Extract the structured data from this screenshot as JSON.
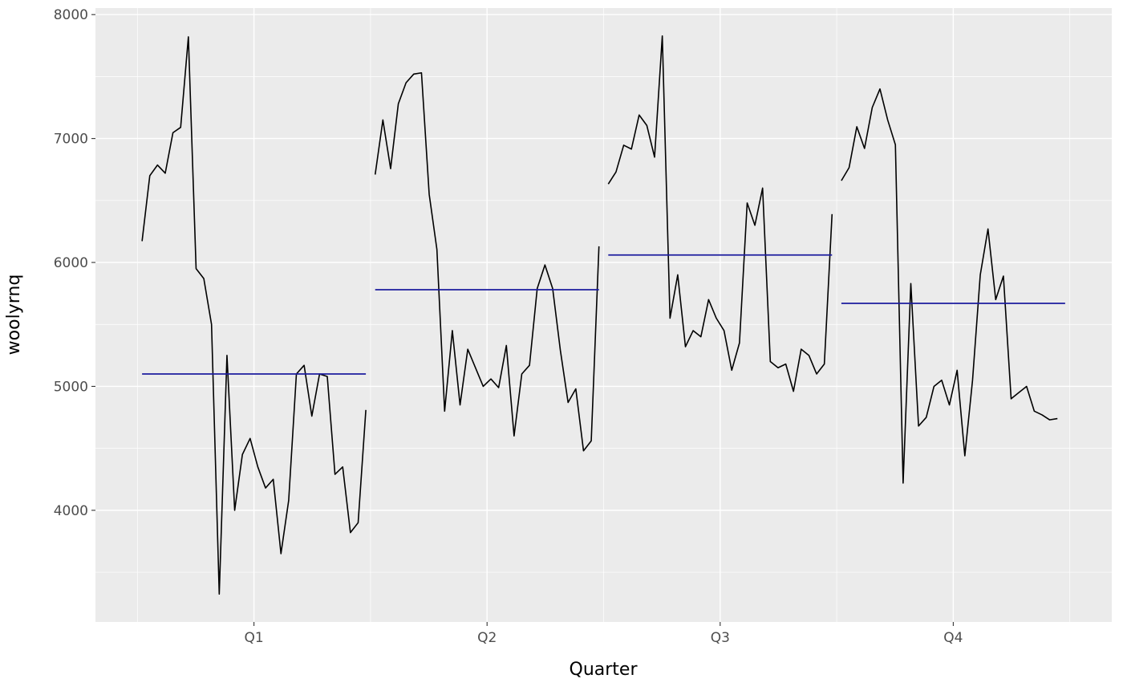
{
  "chart_data": {
    "type": "line",
    "subtype": "seasonal-subseries",
    "title": "",
    "xlabel": "Quarter",
    "ylabel": "woolyrnq",
    "categories": [
      "Q1",
      "Q2",
      "Q3",
      "Q4"
    ],
    "ylim": [
      3099,
      8053
    ],
    "yticks": [
      4000,
      5000,
      6000,
      7000,
      8000
    ],
    "yticks_minor": [
      3500,
      4500,
      5500,
      6500,
      7500
    ],
    "grid": true,
    "legend": "none",
    "panel_bg": "#EBEBEB",
    "grid_color": "#FFFFFF",
    "series_color": "#000000",
    "mean_line_color": "#1C1C9E",
    "tick_label_color": "#4D4D4D",
    "tick_mark_color": "#333333",
    "series": [
      {
        "name": "Q1",
        "mean": 5100,
        "values": [
          6172,
          6700,
          6786,
          6720,
          7047,
          7090,
          7820,
          5950,
          5870,
          5500,
          3324,
          5250,
          4000,
          4450,
          4580,
          4350,
          4180,
          4250,
          3650,
          4080,
          5100,
          5170,
          4760,
          5100,
          5080,
          4290,
          4350,
          3820,
          3900,
          4810
        ]
      },
      {
        "name": "Q2",
        "mean": 5780,
        "values": [
          6709,
          7150,
          6757,
          7280,
          7450,
          7520,
          7530,
          6550,
          6105,
          4800,
          5450,
          4850,
          5300,
          5150,
          5000,
          5060,
          4990,
          5330,
          4600,
          5100,
          5170,
          5790,
          5980,
          5790,
          5290,
          4870,
          4980,
          4480,
          4560,
          6130
        ]
      },
      {
        "name": "Q3",
        "mean": 6060,
        "values": [
          6633,
          6730,
          6946,
          6915,
          7190,
          7105,
          6850,
          7828,
          5550,
          5900,
          5320,
          5450,
          5400,
          5700,
          5550,
          5450,
          5130,
          5350,
          6480,
          6300,
          6600,
          5200,
          5150,
          5180,
          4960,
          5300,
          5250,
          5100,
          5180,
          6390
        ]
      },
      {
        "name": "Q4",
        "mean": 5670,
        "values": [
          6660,
          6765,
          7095,
          6920,
          7250,
          7400,
          7150,
          6950,
          4220,
          5830,
          4680,
          4750,
          5000,
          5050,
          4850,
          5130,
          4440,
          5050,
          5900,
          6270,
          5700,
          5890,
          4900,
          4950,
          5000,
          4800,
          4770,
          4730,
          4740
        ]
      }
    ]
  }
}
